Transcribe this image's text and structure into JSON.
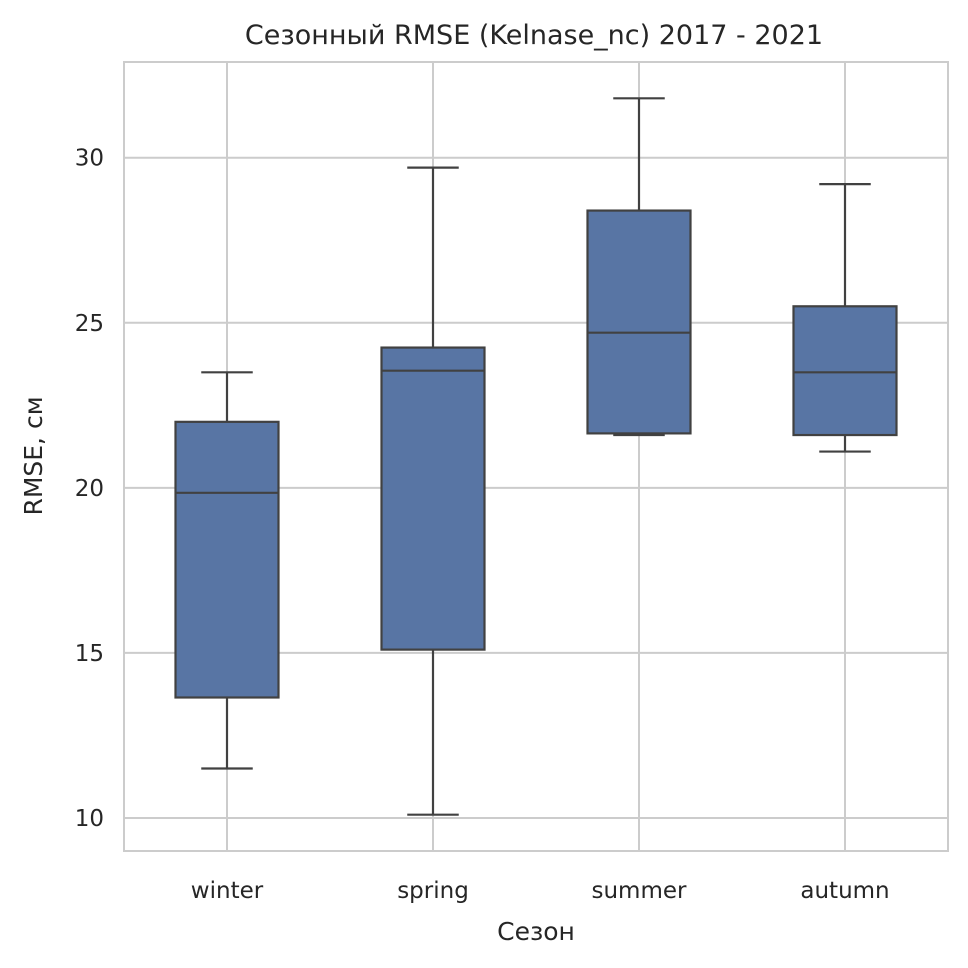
{
  "chart_data": {
    "type": "boxplot",
    "title": "Сезонный RMSE (Kelnase_nc) 2017 - 2021",
    "xlabel": "Сезон",
    "ylabel": "RMSE, см",
    "categories": [
      "winter",
      "spring",
      "summer",
      "autumn"
    ],
    "ylim": [
      9.0,
      32.9
    ],
    "yticks": [
      10,
      15,
      20,
      25,
      30
    ],
    "grid": true,
    "box_color": "#5875a4",
    "line_color": "#414141",
    "grid_color": "#cccccc",
    "boxes": [
      {
        "category": "winter",
        "whisker_low": 11.5,
        "q1": 13.65,
        "median": 19.85,
        "q3": 22.0,
        "whisker_high": 23.5
      },
      {
        "category": "spring",
        "whisker_low": 10.1,
        "q1": 15.1,
        "median": 23.55,
        "q3": 24.25,
        "whisker_high": 29.7
      },
      {
        "category": "summer",
        "whisker_low": 21.6,
        "q1": 21.65,
        "median": 24.7,
        "q3": 28.4,
        "whisker_high": 31.8
      },
      {
        "category": "autumn",
        "whisker_low": 21.1,
        "q1": 21.6,
        "median": 23.5,
        "q3": 25.5,
        "whisker_high": 29.2
      }
    ]
  }
}
